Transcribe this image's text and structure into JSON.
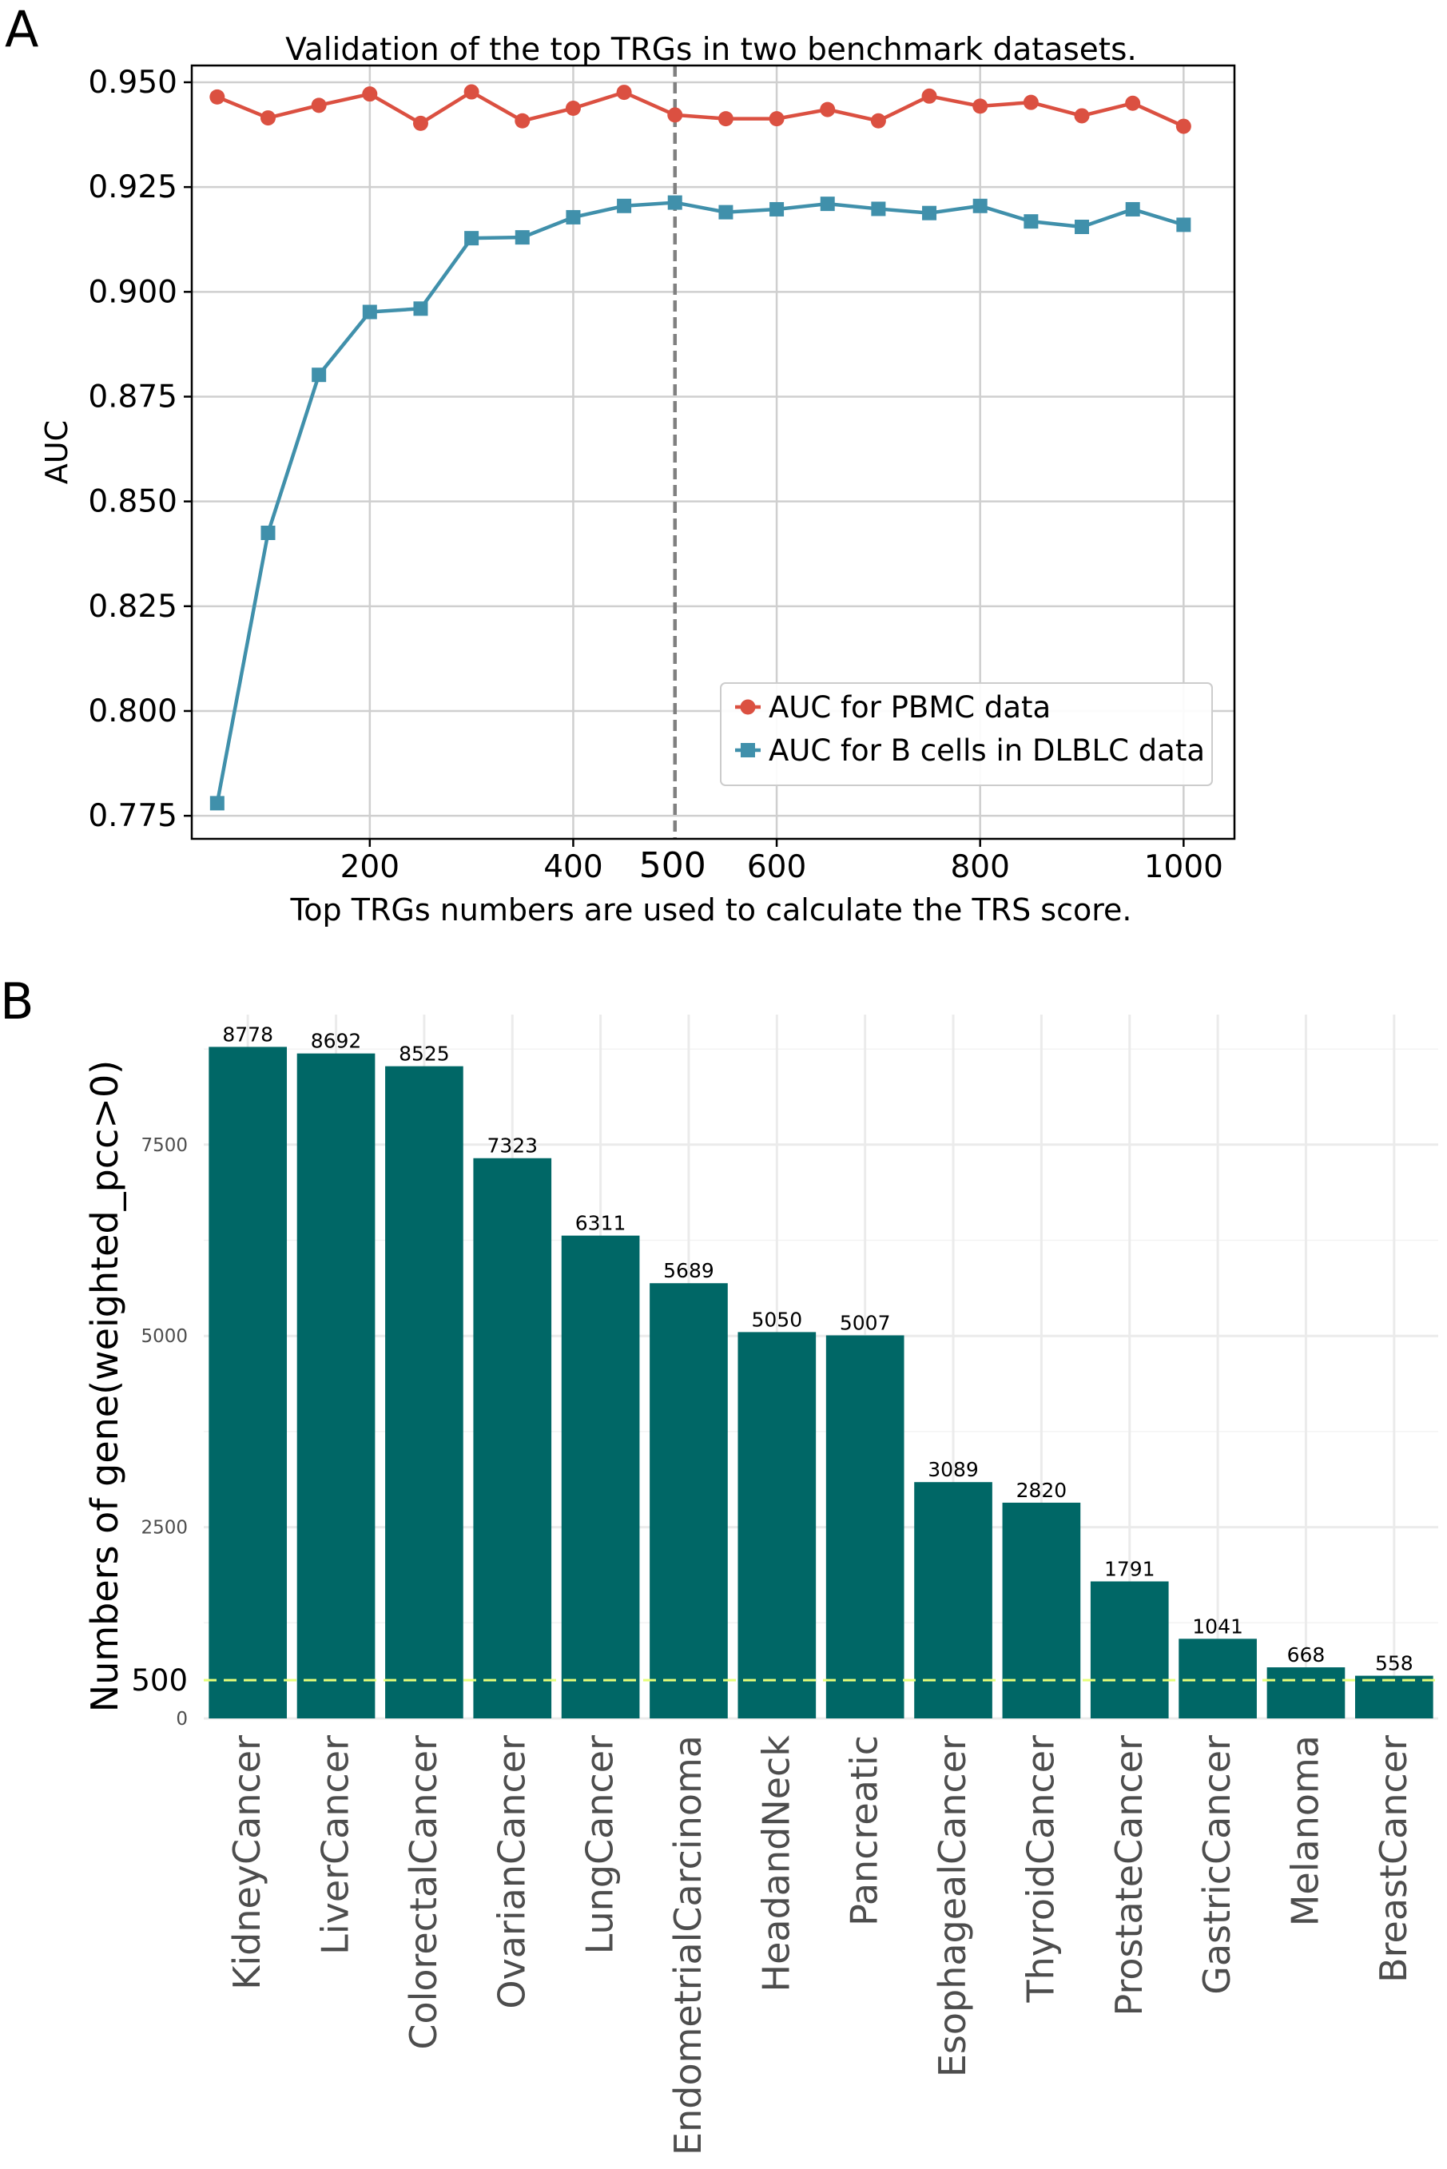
{
  "panel_a_label": "A",
  "panel_b_label": "B",
  "chart_data": [
    {
      "type": "line",
      "title": "Validation of the top TRGs in two benchmark datasets.",
      "xlabel": "Top TRGs numbers are used to calculate the TRS score.",
      "ylabel": "AUC",
      "xlim": [
        25,
        1050
      ],
      "ylim": [
        0.7695,
        0.954
      ],
      "x_ticks": [
        200,
        400,
        600,
        800,
        1000
      ],
      "y_ticks": [
        0.775,
        0.8,
        0.825,
        0.85,
        0.875,
        0.9,
        0.925,
        0.95
      ],
      "y_tick_labels": [
        "0.775",
        "0.800",
        "0.825",
        "0.850",
        "0.875",
        "0.900",
        "0.925",
        "0.950"
      ],
      "reference_line": {
        "x": 500,
        "label": "500",
        "color": "#808080",
        "style": "dashed"
      },
      "grid": true,
      "legend_position": "lower-right",
      "x": [
        50,
        100,
        150,
        200,
        250,
        300,
        350,
        400,
        450,
        500,
        550,
        600,
        650,
        700,
        750,
        800,
        850,
        900,
        950,
        1000
      ],
      "series": [
        {
          "name": "AUC for PBMC data",
          "color": "#db5041",
          "marker": "circle",
          "values": [
            0.9465,
            0.9415,
            0.9445,
            0.9472,
            0.9402,
            0.9477,
            0.9408,
            0.9438,
            0.9476,
            0.9422,
            0.9413,
            0.9413,
            0.9435,
            0.9408,
            0.9467,
            0.9443,
            0.9452,
            0.942,
            0.945,
            0.9395
          ]
        },
        {
          "name": "AUC for B cells in DLBLC data",
          "color": "#4090ab",
          "marker": "square",
          "values": [
            0.778,
            0.8425,
            0.8802,
            0.8952,
            0.896,
            0.9128,
            0.913,
            0.9178,
            0.9205,
            0.9213,
            0.919,
            0.9197,
            0.921,
            0.9198,
            0.9188,
            0.9205,
            0.9168,
            0.9155,
            0.9197,
            0.916
          ]
        }
      ]
    },
    {
      "type": "bar",
      "title": "",
      "xlabel": "",
      "ylabel": "Numbers of gene(weighted_pcc>0)",
      "ylim": [
        0,
        9200
      ],
      "y_ticks": [
        0,
        2500,
        5000,
        7500
      ],
      "bar_color": "#006766",
      "grid": true,
      "reference_line": {
        "y": 500,
        "label": "500",
        "color": "#e8ff7a",
        "style": "dashed"
      },
      "categories": [
        "KidneyCancer",
        "LiverCancer",
        "ColorectalCancer",
        "OvarianCancer",
        "LungCancer",
        "EndometrialCarcinoma",
        "HeadandNeck",
        "Pancreatic",
        "EsophagealCancer",
        "ThyroidCancer",
        "ProstateCancer",
        "GastricCancer",
        "Melanoma",
        "BreastCancer"
      ],
      "values": [
        8778,
        8692,
        8525,
        7323,
        6311,
        5689,
        5050,
        5007,
        3089,
        2820,
        1791,
        1041,
        668,
        558
      ]
    }
  ]
}
